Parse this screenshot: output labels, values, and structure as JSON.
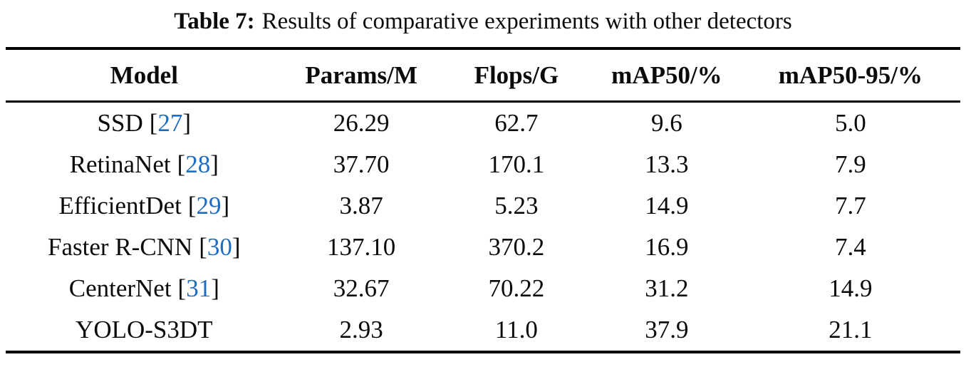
{
  "title": {
    "label": "Table 7:",
    "text": "Results of comparative experiments with other detectors"
  },
  "table": {
    "columns": [
      "Model",
      "Params/M",
      "Flops/G",
      "mAP50/%",
      "mAP50-95/%"
    ],
    "rows": [
      {
        "model": "SSD",
        "cite": "27",
        "values": [
          "26.29",
          "62.7",
          "9.6",
          "5.0"
        ]
      },
      {
        "model": "RetinaNet",
        "cite": "28",
        "values": [
          "37.70",
          "170.1",
          "13.3",
          "7.9"
        ]
      },
      {
        "model": "EfficientDet",
        "cite": "29",
        "values": [
          "3.87",
          "5.23",
          "14.9",
          "7.7"
        ]
      },
      {
        "model": "Faster R-CNN",
        "cite": "30",
        "values": [
          "137.10",
          "370.2",
          "16.9",
          "7.4"
        ]
      },
      {
        "model": "CenterNet",
        "cite": "31",
        "values": [
          "32.67",
          "70.22",
          "31.2",
          "14.9"
        ]
      },
      {
        "model": "YOLO-S3DT",
        "cite": null,
        "values": [
          "2.93",
          "11.0",
          "37.9",
          "21.1"
        ]
      }
    ],
    "citation_brackets": {
      "open": "[",
      "close": "]"
    }
  },
  "colors": {
    "citation_blue": "#1f6dc1",
    "rule_black": "#000000",
    "text_black": "#0b0b0b"
  }
}
